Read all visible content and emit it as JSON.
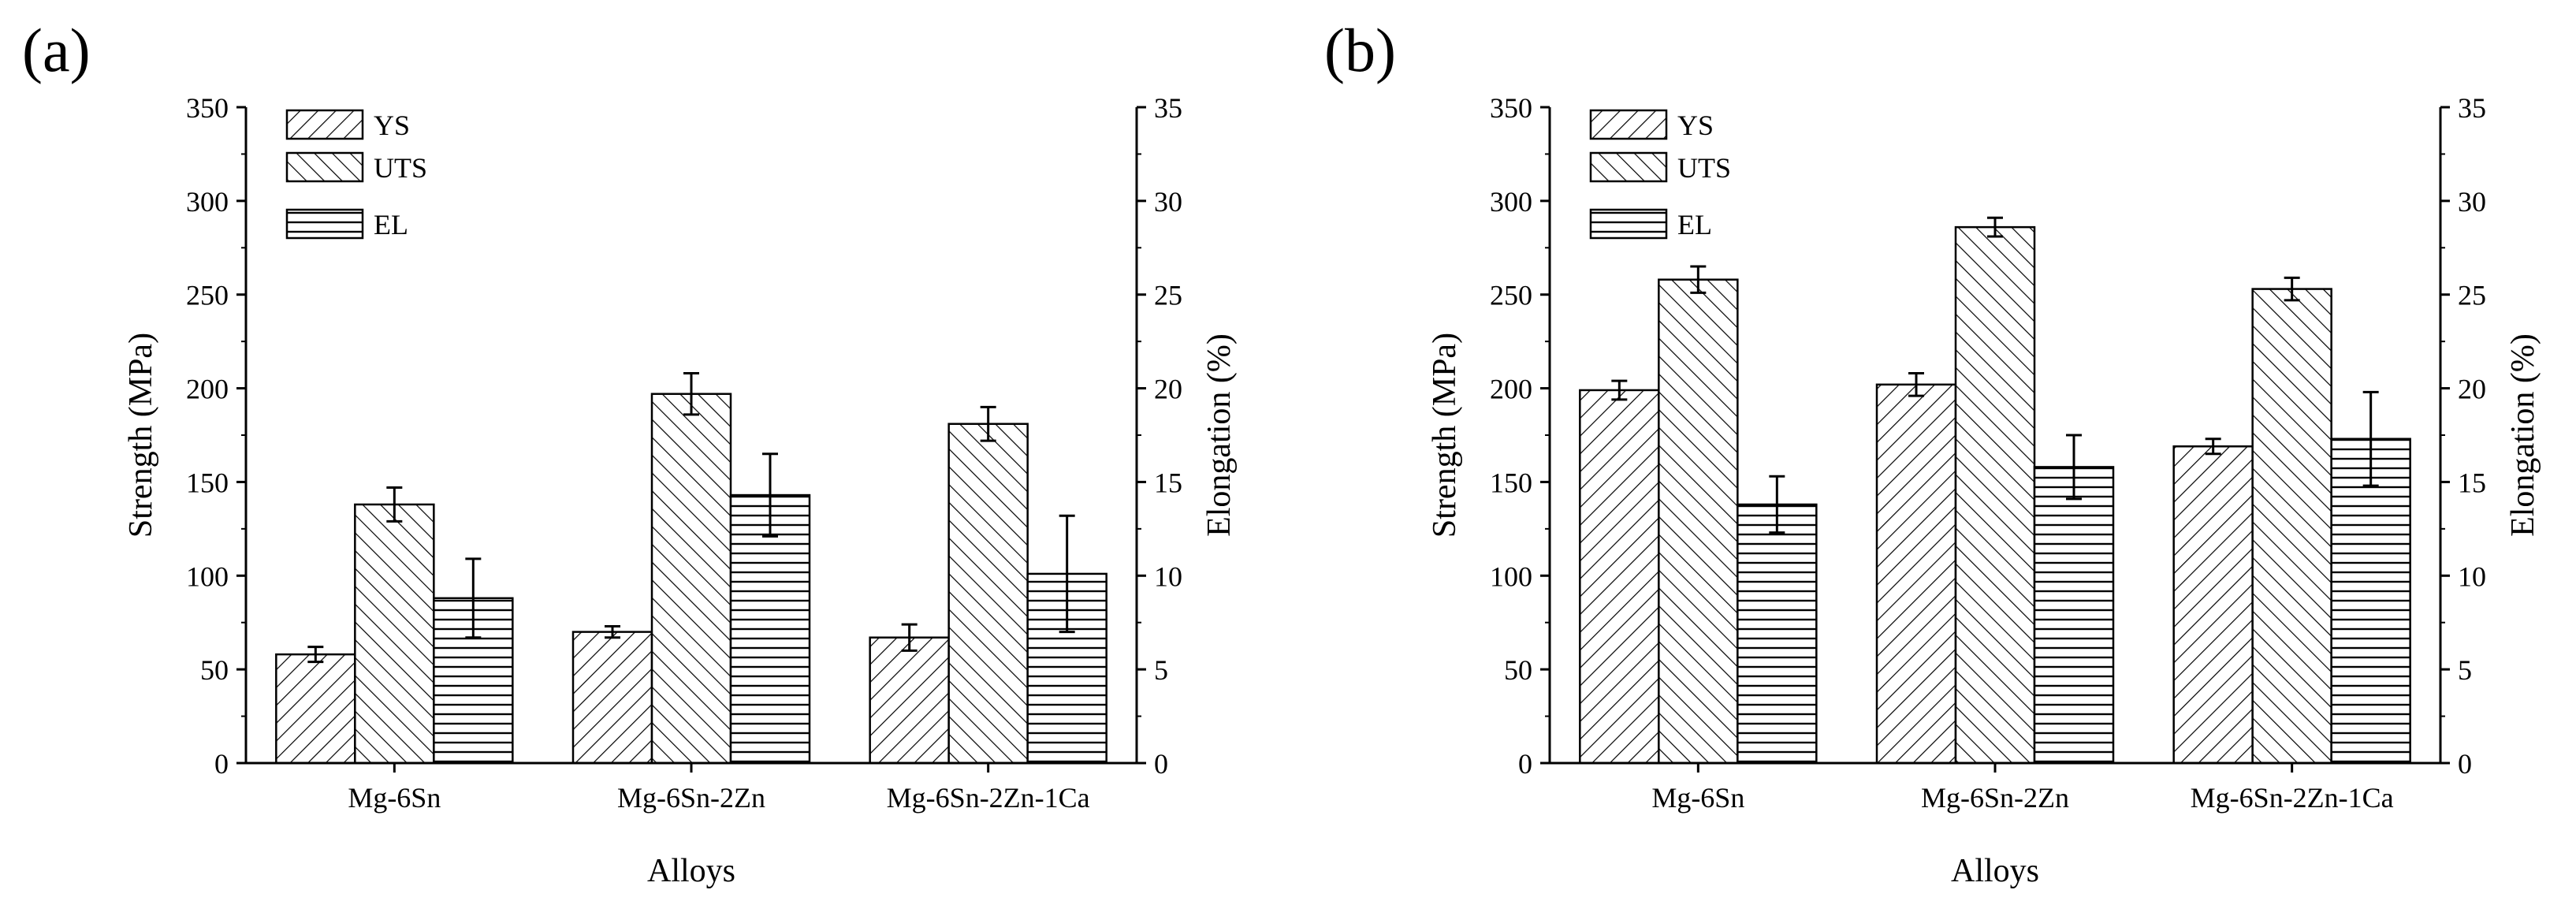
{
  "chart_data": [
    {
      "type": "bar",
      "panel_label": "(a)",
      "categories": [
        "Mg-6Sn",
        "Mg-6Sn-2Zn",
        "Mg-6Sn-2Zn-1Ca"
      ],
      "xlabel": "Alloys",
      "ylabel": "Strength (MPa)",
      "y2label": "Elongation (%)",
      "ylim": [
        0,
        350
      ],
      "y2lim": [
        0,
        35
      ],
      "yticks": [
        "0",
        "50",
        "100",
        "150",
        "200",
        "250",
        "300",
        "350"
      ],
      "y2ticks": [
        "0",
        "5",
        "10",
        "15",
        "20",
        "25",
        "30",
        "35"
      ],
      "legend_position": "top-left",
      "series": [
        {
          "name": "YS",
          "axis": "left",
          "values": [
            58,
            70,
            67
          ],
          "errors": [
            4,
            3,
            7
          ]
        },
        {
          "name": "UTS",
          "axis": "left",
          "values": [
            138,
            197,
            181
          ],
          "errors": [
            9,
            11,
            9
          ]
        },
        {
          "name": "EL",
          "axis": "right",
          "values": [
            8.8,
            14.3,
            10.1
          ],
          "errors": [
            2.1,
            2.2,
            3.1
          ]
        }
      ]
    },
    {
      "type": "bar",
      "panel_label": "(b)",
      "categories": [
        "Mg-6Sn",
        "Mg-6Sn-2Zn",
        "Mg-6Sn-2Zn-1Ca"
      ],
      "xlabel": "Alloys",
      "ylabel": "Strength (MPa)",
      "y2label": "Elongation (%)",
      "ylim": [
        0,
        350
      ],
      "y2lim": [
        0,
        35
      ],
      "yticks": [
        "0",
        "50",
        "100",
        "150",
        "200",
        "250",
        "300",
        "350"
      ],
      "y2ticks": [
        "0",
        "5",
        "10",
        "15",
        "20",
        "25",
        "30",
        "35"
      ],
      "legend_position": "top-left",
      "series": [
        {
          "name": "YS",
          "axis": "left",
          "values": [
            199,
            202,
            169
          ],
          "errors": [
            5,
            6,
            4
          ]
        },
        {
          "name": "UTS",
          "axis": "left",
          "values": [
            258,
            286,
            253
          ],
          "errors": [
            7,
            5,
            6
          ]
        },
        {
          "name": "EL",
          "axis": "right",
          "values": [
            13.8,
            15.8,
            17.3
          ],
          "errors": [
            1.5,
            1.7,
            2.5
          ]
        }
      ]
    }
  ]
}
